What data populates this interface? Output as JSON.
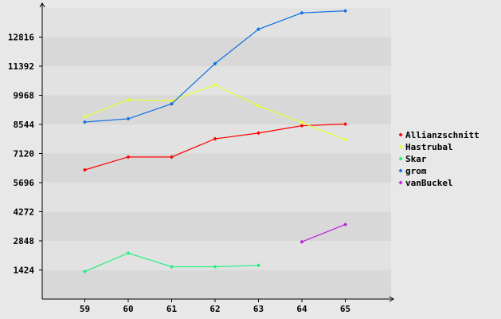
{
  "chart_data": {
    "type": "line",
    "x": [
      59,
      60,
      61,
      62,
      63,
      64,
      65
    ],
    "y_ticks": [
      1424,
      2848,
      4272,
      5696,
      7120,
      8544,
      9968,
      11392,
      12816
    ],
    "x_ticks": [
      59,
      60,
      61,
      62,
      63,
      64,
      65
    ],
    "xlim": [
      58,
      66
    ],
    "ylim": [
      0,
      14240
    ],
    "grid": "alternating horizontal bands",
    "legend_position": "right",
    "series": [
      {
        "name": "Allianzschnitt",
        "color": "#ff0000",
        "values": [
          6320,
          6950,
          6950,
          7840,
          8120,
          8480,
          8560
        ]
      },
      {
        "name": "Hastrubal",
        "color": "#e8ff30",
        "values": [
          8920,
          9750,
          9700,
          10480,
          9450,
          8640,
          7800
        ]
      },
      {
        "name": "Skar",
        "color": "#20f080",
        "values": [
          1350,
          2250,
          1580,
          1580,
          1650,
          null,
          null
        ]
      },
      {
        "name": "grom",
        "color": "#1070e0",
        "values": [
          8660,
          8820,
          9550,
          11520,
          13200,
          14000,
          14100
        ]
      },
      {
        "name": "vanBuckel",
        "color": "#c020e0",
        "values": [
          null,
          null,
          null,
          null,
          null,
          2800,
          3650
        ]
      }
    ]
  }
}
